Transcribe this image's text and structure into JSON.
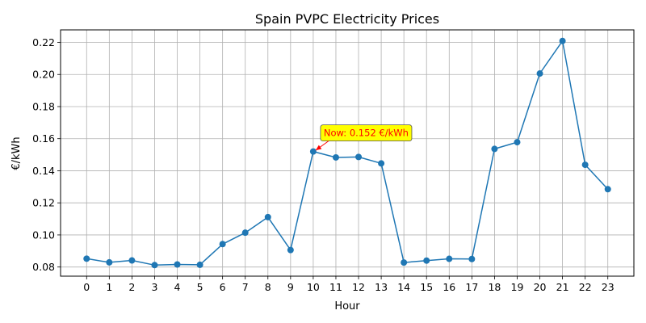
{
  "chart_data": {
    "type": "line",
    "title": "Spain PVPC Electricity Prices",
    "xlabel": "Hour",
    "ylabel": "€/kWh",
    "x": [
      0,
      1,
      2,
      3,
      4,
      5,
      6,
      7,
      8,
      9,
      10,
      11,
      12,
      13,
      14,
      15,
      16,
      17,
      18,
      19,
      20,
      21,
      22,
      23
    ],
    "y": [
      0.0852,
      0.0829,
      0.0841,
      0.0812,
      0.0816,
      0.0814,
      0.0943,
      0.1014,
      0.1111,
      0.0906,
      0.152,
      0.1483,
      0.1486,
      0.1446,
      0.0828,
      0.084,
      0.0851,
      0.085,
      0.1536,
      0.1578,
      0.2006,
      0.2209,
      0.1437,
      0.1285
    ],
    "xlim": [
      -1.15,
      24.15
    ],
    "ylim": [
      0.0743,
      0.2278
    ],
    "xticks": [
      0,
      1,
      2,
      3,
      4,
      5,
      6,
      7,
      8,
      9,
      10,
      11,
      12,
      13,
      14,
      15,
      16,
      17,
      18,
      19,
      20,
      21,
      22,
      23
    ],
    "yticks": [
      0.08,
      0.1,
      0.12,
      0.14,
      0.16,
      0.18,
      0.2,
      0.22
    ],
    "ytick_labels": [
      "0.08",
      "0.10",
      "0.12",
      "0.14",
      "0.16",
      "0.18",
      "0.20",
      "0.22"
    ],
    "grid": true,
    "colors": {
      "line": "#1f77b4",
      "grid": "#b0b0b0",
      "annotation_text": "#ff0000",
      "annotation_box": "#ffff00",
      "arrow": "#ff0000"
    },
    "annotation": {
      "text": "Now: 0.152 €/kWh",
      "x": 10,
      "y": 0.152
    }
  }
}
